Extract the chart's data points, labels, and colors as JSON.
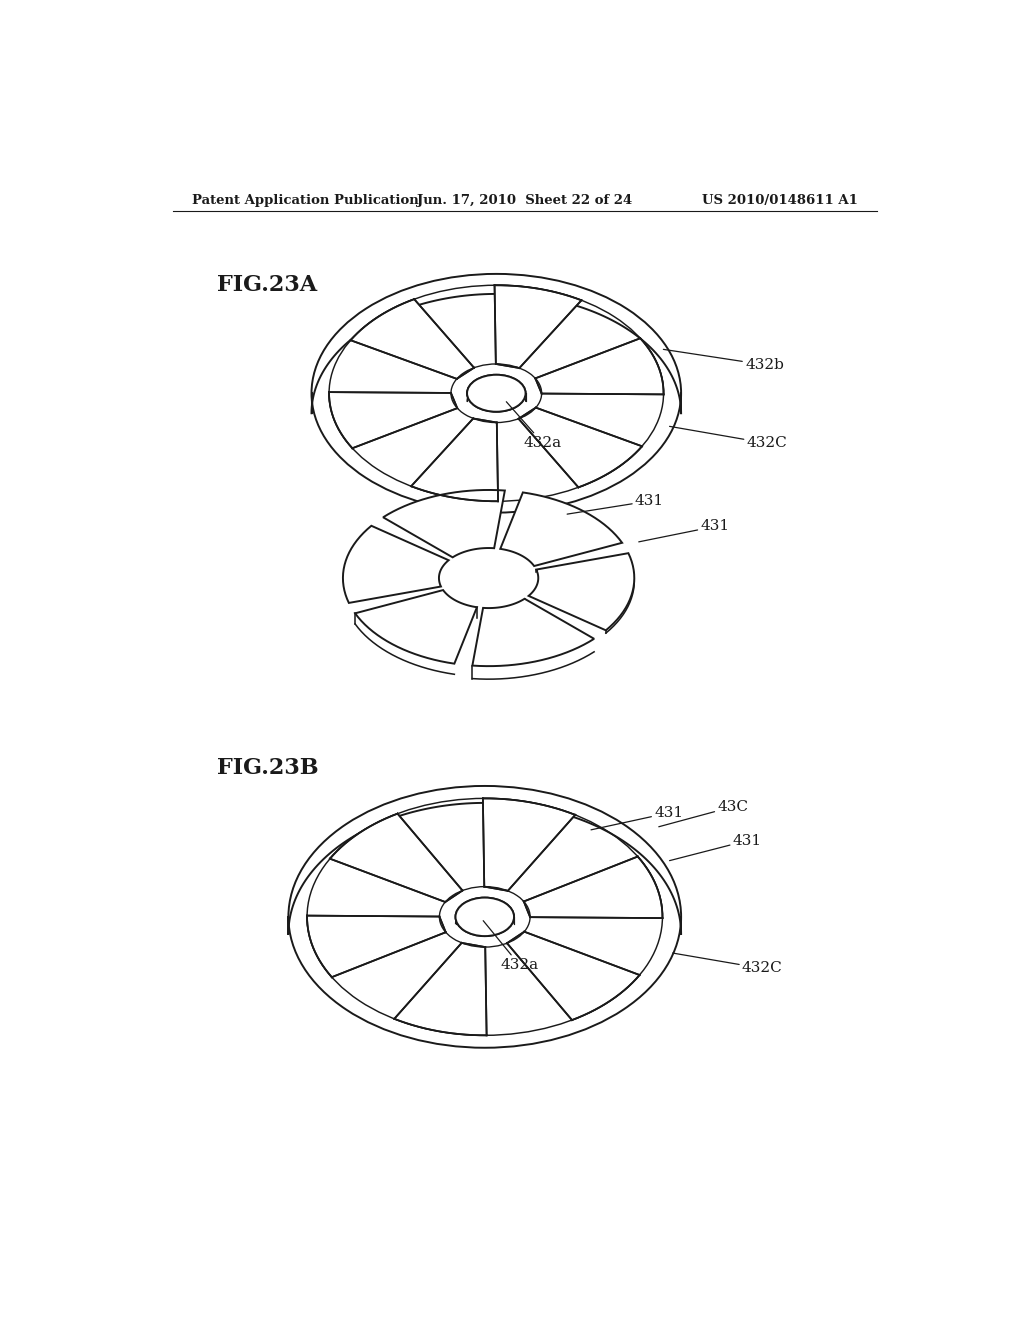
{
  "header_left": "Patent Application Publication",
  "header_mid": "Jun. 17, 2010  Sheet 22 of 24",
  "header_right": "US 2010/0148611 A1",
  "fig_label_A": "FIG.23A",
  "fig_label_B": "FIG.23B",
  "bg_color": "#ffffff",
  "line_color": "#1a1a1a",
  "n_slots": 6,
  "n_magnets": 6
}
